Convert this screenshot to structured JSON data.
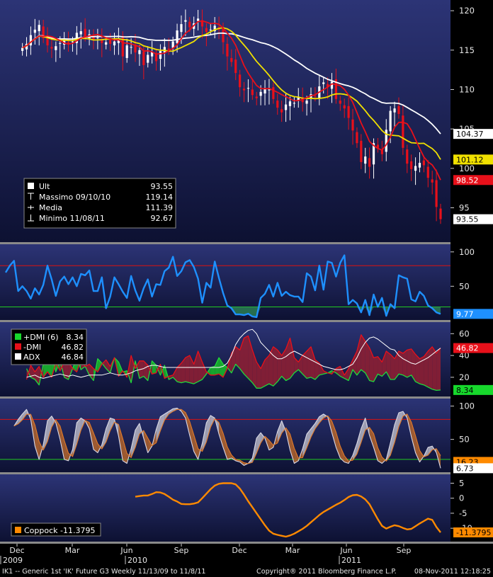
{
  "colors": {
    "panel_top": "#2c3476",
    "panel_bottom": "#0d1132",
    "divider": "#8a8a8a",
    "axis_bg": "#000000",
    "up_candle": "#ffffff",
    "down_candle": "#e8101a",
    "ma_white": "#ffffff",
    "ma_yellow": "#f0e000",
    "ma_red": "#e8101a",
    "rsi": "#1e90ff",
    "dmi_plus": "#17b52a",
    "dmi_minus": "#8c1f34",
    "adx": "#ffffff",
    "coppock": "#ff8a00",
    "hline_red": "#d11",
    "hline_green": "#2c2"
  },
  "chart_data": [
    {
      "type": "candlestick",
      "panel": "price",
      "ylim": [
        91,
        121
      ],
      "yticks": [
        95,
        100,
        105,
        110,
        115,
        120
      ],
      "x_start": "2009-11-13",
      "x_end": "2011-11-08",
      "close": [
        115.3,
        115.8,
        116.9,
        117.6,
        118.2,
        116.5,
        115.6,
        115.2,
        115.5,
        115.9,
        116.2,
        115.7,
        116.1,
        117.2,
        117.4,
        116.7,
        117.0,
        116.3,
        116.6,
        115.9,
        116.0,
        115.8,
        116.1,
        116.5,
        114.2,
        115.6,
        115.4,
        114.7,
        115.0,
        113.1,
        114.4,
        114.8,
        113.6,
        114.9,
        115.4,
        115.0,
        116.1,
        117.5,
        118.3,
        118.8,
        117.9,
        118.4,
        119.0,
        118.0,
        117.3,
        117.6,
        118.1,
        117.6,
        116.0,
        114.2,
        113.5,
        112.1,
        110.3,
        109.9,
        110.2,
        109.3,
        108.9,
        109.7,
        110.1,
        110.0,
        108.8,
        107.7,
        107.1,
        108.1,
        108.5,
        108.3,
        109.1,
        108.4,
        108.6,
        109.4,
        109.1,
        110.4,
        110.9,
        110.3,
        111.0,
        108.8,
        108.2,
        107.6,
        106.4,
        104.8,
        103.2,
        100.8,
        101.5,
        100.2,
        103.2,
        102.6,
        101.8,
        104.9,
        107.3,
        107.6,
        106.9,
        102.6,
        100.6,
        99.9,
        100.3,
        100.7,
        100.4,
        98.8,
        98.2,
        95.1,
        93.55
      ],
      "high": 119.14,
      "high_date": "09/10/10",
      "low": 92.67,
      "low_date": "11/08/11",
      "mean": 111.39,
      "moving_averages": [
        {
          "color": "#ffffff",
          "label": "104.37",
          "last": 104.37,
          "window": 26
        },
        {
          "color": "#f0e000",
          "label": "101.12",
          "last": 101.12,
          "window": 13
        },
        {
          "color": "#e8101a",
          "label": "98.52",
          "last": 98.52,
          "window": 6
        }
      ],
      "last_label": "93.55",
      "legend": [
        {
          "marker": "square",
          "label": "Ult",
          "value": "93.55"
        },
        {
          "marker": "hi",
          "label": "Massimo 09/10/10",
          "value": "119.14"
        },
        {
          "marker": "mid",
          "label": "Media",
          "value": "111.39"
        },
        {
          "marker": "lo",
          "label": "Minimo 11/08/11",
          "value": "92.67"
        }
      ]
    },
    {
      "type": "line",
      "panel": "rsi",
      "ylim": [
        5,
        107
      ],
      "yticks": [
        50,
        100
      ],
      "hlines": [
        {
          "y": 80,
          "color": "#d11"
        },
        {
          "y": 20,
          "color": "#2c2"
        }
      ],
      "values": [
        70,
        80,
        87,
        43,
        50,
        43,
        32,
        47,
        38,
        52,
        80,
        60,
        36,
        57,
        64,
        53,
        63,
        50,
        68,
        66,
        73,
        43,
        43,
        63,
        18,
        35,
        63,
        53,
        42,
        33,
        65,
        44,
        29,
        47,
        60,
        35,
        53,
        52,
        72,
        77,
        93,
        65,
        72,
        85,
        88,
        78,
        61,
        26,
        55,
        48,
        86,
        62,
        40,
        22,
        18,
        9,
        9,
        8,
        10,
        6,
        5,
        33,
        39,
        52,
        35,
        55,
        36,
        42,
        37,
        35,
        35,
        27,
        69,
        64,
        44,
        80,
        45,
        86,
        84,
        64,
        84,
        95,
        24,
        30,
        25,
        12,
        30,
        8,
        38,
        20,
        33,
        7,
        24,
        18,
        66,
        63,
        61,
        31,
        28,
        42,
        36,
        22,
        18,
        12,
        9.77
      ],
      "last_label": "9.77"
    },
    {
      "type": "area",
      "panel": "dmi",
      "ylim": [
        5,
        68
      ],
      "yticks": [
        20,
        40,
        60
      ],
      "series": [
        {
          "name": "+DMI (6)",
          "color": "#17b52a",
          "last": 8.34,
          "label": "8.34",
          "values": [
            28,
            20,
            18,
            13,
            32,
            35,
            40,
            25,
            35,
            20,
            18,
            28,
            38,
            27,
            30,
            22,
            17,
            37,
            33,
            28,
            24,
            38,
            34,
            25,
            26,
            15,
            35,
            19,
            21,
            17,
            35,
            31,
            22,
            31,
            18,
            20,
            16,
            15,
            16,
            15,
            14,
            16,
            18,
            23,
            29,
            30,
            38,
            32,
            29,
            24,
            32,
            28,
            23,
            19,
            15,
            10,
            10,
            12,
            14,
            12,
            16,
            21,
            17,
            19,
            24,
            27,
            23,
            19,
            20,
            18,
            22,
            23,
            24,
            26,
            24,
            21,
            19,
            17,
            27,
            22,
            27,
            24,
            17,
            16,
            23,
            21,
            25,
            18,
            18,
            23,
            22,
            20,
            22,
            16,
            14,
            13,
            11,
            9,
            8,
            8.34
          ]
        },
        {
          "name": "-DMI",
          "color": "#8c1f34",
          "last": 46.82,
          "label": "46.82",
          "values": [
            18,
            31,
            25,
            30,
            20,
            25,
            20,
            33,
            26,
            34,
            34,
            28,
            25,
            36,
            30,
            32,
            28,
            25,
            32,
            36,
            30,
            38,
            21,
            26,
            20,
            40,
            28,
            35,
            35,
            31,
            23,
            24,
            32,
            19,
            21,
            22,
            29,
            33,
            38,
            40,
            32,
            44,
            34,
            25,
            22,
            22,
            23,
            20,
            28,
            42,
            48,
            45,
            56,
            58,
            45,
            34,
            28,
            36,
            40,
            48,
            45,
            40,
            46,
            56,
            38,
            34,
            40,
            44,
            48,
            36,
            33,
            26,
            24,
            23,
            28,
            30,
            22,
            28,
            36,
            44,
            59,
            53,
            47,
            38,
            39,
            34,
            44,
            41,
            37,
            44,
            42,
            45,
            46,
            41,
            37,
            39,
            44,
            48,
            42,
            46.82
          ]
        },
        {
          "name": "ADX",
          "color": "#ffffff",
          "last": 46.84,
          "label": "46.84",
          "values": [
            20,
            21,
            22,
            20,
            19,
            20,
            21,
            22,
            23,
            22,
            21,
            22,
            21,
            20,
            21,
            22,
            22,
            22,
            22,
            23,
            24,
            23,
            22,
            22,
            23,
            24,
            26,
            27,
            28,
            30,
            31,
            31,
            30,
            29,
            29,
            29,
            29,
            29,
            29,
            29,
            29,
            29,
            29,
            29,
            29,
            29,
            29,
            30,
            33,
            40,
            50,
            56,
            60,
            63,
            64,
            60,
            52,
            48,
            44,
            40,
            37,
            37,
            39,
            42,
            44,
            42,
            40,
            38,
            36,
            34,
            32,
            30,
            29,
            28,
            27,
            27,
            28,
            30,
            32,
            38,
            46,
            52,
            56,
            57,
            55,
            52,
            49,
            46,
            45,
            40,
            37,
            35,
            33,
            32,
            34,
            36,
            38,
            41,
            44,
            46.84
          ]
        }
      ]
    },
    {
      "type": "line",
      "panel": "stochastic",
      "ylim": [
        5,
        107
      ],
      "yticks": [
        50,
        100
      ],
      "hlines": [
        {
          "y": 80,
          "color": "#d11"
        },
        {
          "y": 20,
          "color": "#2c2"
        }
      ],
      "values": [
        70,
        80,
        88,
        95,
        80,
        40,
        20,
        42,
        78,
        85,
        75,
        50,
        20,
        18,
        35,
        75,
        82,
        78,
        66,
        35,
        30,
        42,
        66,
        82,
        80,
        55,
        18,
        14,
        36,
        64,
        74,
        52,
        30,
        40,
        65,
        84,
        88,
        92,
        96,
        97,
        92,
        82,
        56,
        32,
        20,
        44,
        75,
        86,
        82,
        58,
        38,
        20,
        22,
        18,
        16,
        11,
        14,
        22,
        52,
        60,
        52,
        34,
        38,
        62,
        78,
        62,
        34,
        14,
        18,
        36,
        58,
        66,
        74,
        84,
        88,
        84,
        60,
        38,
        22,
        16,
        14,
        26,
        44,
        66,
        82,
        56,
        38,
        18,
        14,
        20,
        45,
        72,
        90,
        92,
        82,
        54,
        30,
        16,
        25,
        38,
        40,
        30,
        6.73
      ],
      "last_label": "6.73",
      "last_label_2": "16.23"
    },
    {
      "type": "line",
      "panel": "coppock",
      "ylim": [
        -13.5,
        7
      ],
      "yticks": [
        -10,
        -5,
        0,
        5
      ],
      "x_first_value_index": 19,
      "values": [
        0.5,
        0.7,
        0.9,
        0.9,
        1.4,
        2.0,
        1.9,
        1.4,
        0.5,
        -0.5,
        -1.1,
        -1.9,
        -2.0,
        -2.0,
        -1.8,
        -1.4,
        0,
        1.5,
        3.0,
        4.2,
        4.8,
        5.0,
        5.0,
        5.0,
        4.6,
        3.2,
        1.2,
        -1.0,
        -3.0,
        -5.0,
        -7.0,
        -9.0,
        -10.8,
        -11.8,
        -12.2,
        -12.5,
        -12.8,
        -12.4,
        -11.8,
        -11.0,
        -10.2,
        -9.2,
        -8.0,
        -6.8,
        -5.6,
        -4.6,
        -3.8,
        -3.0,
        -2.2,
        -1.5,
        -0.6,
        0.4,
        1.0,
        1.1,
        0.6,
        -0.4,
        -2.0,
        -4.5,
        -7.0,
        -9.2,
        -10.1,
        -9.5,
        -9.0,
        -9.3,
        -9.9,
        -10.4,
        -10.2,
        -9.3,
        -8.4,
        -7.6,
        -6.8,
        -7.2,
        -9.6,
        -11.3795
      ],
      "legend": {
        "name": "Coppock",
        "value": "-11.3795"
      },
      "last_label": "-11.3795"
    }
  ],
  "xaxis": {
    "months": [
      "Dec",
      "Mar",
      "Jun",
      "Sep",
      "Dec",
      "Mar",
      "Jun",
      "Sep"
    ],
    "years": [
      "2009",
      "2010",
      "2011"
    ]
  },
  "footer": {
    "left": "IK1 -- Generic 1st 'IK' Future    G3  Weekly  11/13/09 to 11/8/11",
    "center": "Copyright® 2011 Bloomberg Finance L.P.",
    "right": "08-Nov-2011 12:18:25"
  }
}
